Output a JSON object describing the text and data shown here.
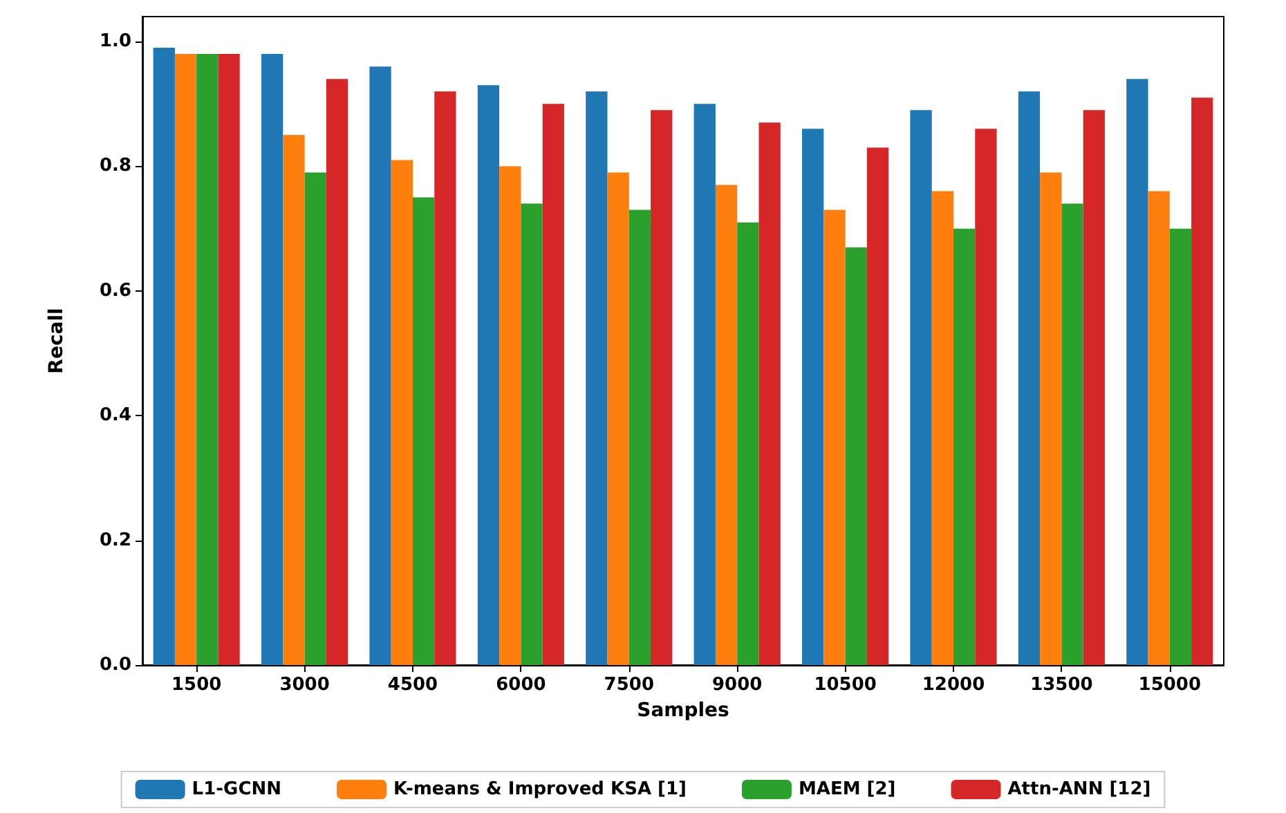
{
  "chart_data": {
    "type": "bar",
    "xlabel": "Samples",
    "ylabel": "Recall",
    "categories": [
      "1500",
      "3000",
      "4500",
      "6000",
      "7500",
      "9000",
      "10500",
      "12000",
      "13500",
      "15000"
    ],
    "series": [
      {
        "name": "L1-GCNN",
        "color": "#1f77b4",
        "values": [
          0.99,
          0.98,
          0.96,
          0.93,
          0.92,
          0.9,
          0.86,
          0.89,
          0.92,
          0.94
        ]
      },
      {
        "name": "K-means & Improved KSA [1]",
        "color": "#ff7f0e",
        "values": [
          0.98,
          0.85,
          0.81,
          0.8,
          0.79,
          0.77,
          0.73,
          0.76,
          0.79,
          0.76
        ]
      },
      {
        "name": "MAEM [2]",
        "color": "#2ca02c",
        "values": [
          0.98,
          0.79,
          0.75,
          0.74,
          0.73,
          0.71,
          0.67,
          0.7,
          0.74,
          0.7
        ]
      },
      {
        "name": "Attn-ANN [12]",
        "color": "#d62728",
        "values": [
          0.98,
          0.94,
          0.92,
          0.9,
          0.89,
          0.87,
          0.83,
          0.86,
          0.89,
          0.91
        ]
      }
    ],
    "ylim": [
      0,
      1.04
    ],
    "yticks": [
      {
        "value": 0,
        "label": "0.0"
      },
      {
        "value": 0.2,
        "label": "0.2"
      },
      {
        "value": 0.4,
        "label": "0.4"
      },
      {
        "value": 0.6,
        "label": "0.6"
      },
      {
        "value": 0.8,
        "label": "0.8"
      },
      {
        "value": 1,
        "label": "1.0"
      }
    ],
    "grid": false,
    "legend": "bottom"
  }
}
